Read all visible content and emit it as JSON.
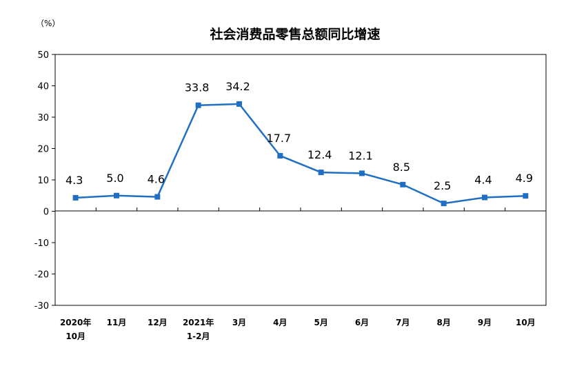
{
  "chart_data": {
    "type": "line",
    "title": "社会消费品零售总额同比增速",
    "unit_label": "（%）",
    "categories": [
      [
        "2020年",
        "10月"
      ],
      [
        "11月"
      ],
      [
        "12月"
      ],
      [
        "2021年",
        "1-2月"
      ],
      [
        "3月"
      ],
      [
        "4月"
      ],
      [
        "5月"
      ],
      [
        "6月"
      ],
      [
        "7月"
      ],
      [
        "8月"
      ],
      [
        "9月"
      ],
      [
        "10月"
      ]
    ],
    "values": [
      4.3,
      5.0,
      4.6,
      33.8,
      34.2,
      17.7,
      12.4,
      12.1,
      8.5,
      2.5,
      4.4,
      4.9
    ],
    "data_labels": [
      "4.3",
      "5.0",
      "4.6",
      "33.8",
      "34.2",
      "17.7",
      "12.4",
      "12.1",
      "8.5",
      "2.5",
      "4.4",
      "4.9"
    ],
    "yticks": [
      50,
      40,
      30,
      20,
      10,
      0,
      -10,
      -20,
      -30
    ],
    "ylim": [
      -30,
      50
    ],
    "grid": false,
    "legend": "none",
    "series_color": "#1F6FC5"
  }
}
